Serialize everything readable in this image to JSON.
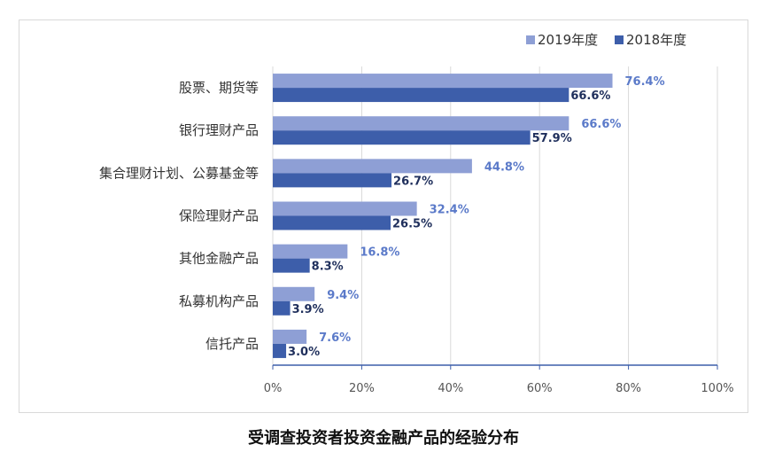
{
  "chart_data": {
    "type": "bar",
    "orientation": "horizontal",
    "categories": [
      "股票、期货等",
      "银行理财产品",
      "集合理财计划、公募基金等",
      "保险理财产品",
      "其他金融产品",
      "私募机构产品",
      "信托产品"
    ],
    "series": [
      {
        "name": "2019年度",
        "values": [
          76.4,
          66.6,
          44.8,
          32.4,
          16.8,
          9.4,
          7.6
        ],
        "labels": [
          "76.4%",
          "66.6%",
          "44.8%",
          "32.4%",
          "16.8%",
          "9.4%",
          "7.6%"
        ],
        "color": "#8e9fd5",
        "label_color": "#5b7ac9"
      },
      {
        "name": "2018年度",
        "values": [
          66.6,
          57.9,
          26.7,
          26.5,
          8.3,
          3.9,
          3.0
        ],
        "labels": [
          "66.6%",
          "57.9%",
          "26.7%",
          "26.5%",
          "8.3%",
          "3.9%",
          "3.0%"
        ],
        "color": "#3d5eaa",
        "label_color": "#1f2f5c"
      }
    ],
    "xlim": [
      0,
      100
    ],
    "xticks": [
      "0%",
      "20%",
      "40%",
      "60%",
      "80%",
      "100%"
    ],
    "xtick_values": [
      0,
      20,
      40,
      60,
      80,
      100
    ],
    "legend_position": "top-right",
    "grid": true
  },
  "caption": "受调查投资者投资金融产品的经验分布"
}
